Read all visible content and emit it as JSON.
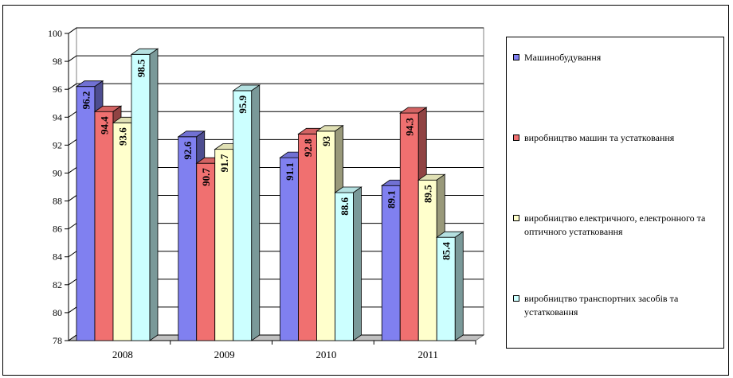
{
  "chart_data": {
    "type": "bar",
    "categories": [
      "2008",
      "2009",
      "2010",
      "2011"
    ],
    "series": [
      {
        "name": "Машинобудування",
        "values": [
          96.2,
          92.6,
          91.1,
          89.1
        ],
        "labels": [
          "96.2",
          "92.6",
          "91.1",
          "89.1"
        ],
        "color": "#8080f0"
      },
      {
        "name": "виробництво машин та устатковання",
        "values": [
          94.4,
          90.7,
          92.8,
          94.3
        ],
        "labels": [
          "94.4",
          "90.7",
          "92.8",
          "94.3"
        ],
        "color": "#f07070"
      },
      {
        "name": "виробництво електричного, електронного та оптичного устатковання",
        "values": [
          93.6,
          91.7,
          93,
          89.5
        ],
        "labels": [
          "93.6",
          "91.7",
          "93",
          "89.5"
        ],
        "color": "#ffffcc"
      },
      {
        "name": "виробництво транспортних засобів та устатковання",
        "values": [
          98.5,
          95.9,
          88.6,
          85.4
        ],
        "labels": [
          "98.5",
          "95.9",
          "88.6",
          "85.4"
        ],
        "color": "#ccffff"
      }
    ],
    "ylim": [
      78,
      100
    ],
    "yticks": [
      "78",
      "80",
      "82",
      "84",
      "86",
      "88",
      "90",
      "92",
      "94",
      "96",
      "98",
      "100"
    ],
    "grid": true,
    "legend": "right",
    "title": "",
    "xlabel": "",
    "ylabel": ""
  }
}
